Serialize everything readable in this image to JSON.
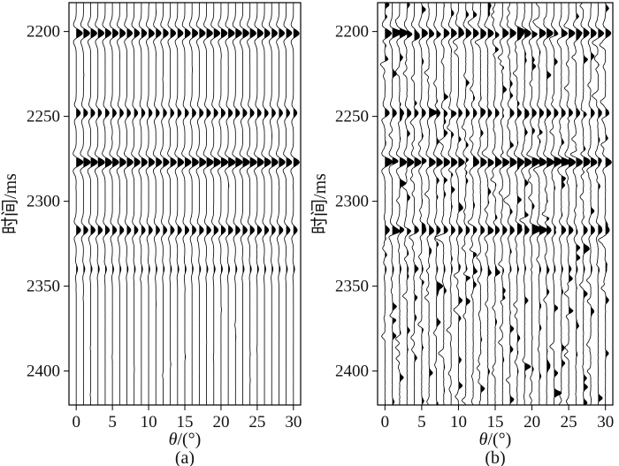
{
  "chart_data": [
    {
      "type": "seismic-wiggle",
      "panel_label": "(a)",
      "xlabel_symbol": "θ",
      "xlabel_unit": "/(°)",
      "ylabel": "时间/ms",
      "xlim": [
        -1,
        31
      ],
      "ylim": [
        2183,
        2420
      ],
      "x_ticks": [
        0,
        5,
        10,
        15,
        20,
        25,
        30
      ],
      "y_ticks": [
        2200,
        2250,
        2300,
        2350,
        2400
      ],
      "traces": [
        0,
        1,
        2,
        3,
        4,
        5,
        6,
        7,
        8,
        9,
        10,
        11,
        12,
        13,
        14,
        15,
        16,
        17,
        18,
        19,
        20,
        21,
        22,
        23,
        24,
        25,
        26,
        27,
        28,
        29,
        30
      ],
      "events": [
        {
          "time": 2201,
          "amplitude": 0.9
        },
        {
          "time": 2248,
          "amplitude": 0.6
        },
        {
          "time": 2277,
          "amplitude": 1.0
        },
        {
          "time": 2317,
          "amplitude": 0.65
        },
        {
          "time": 2340,
          "amplitude": 0.2
        }
      ],
      "noise": 0.05
    },
    {
      "type": "seismic-wiggle",
      "panel_label": "(b)",
      "xlabel_symbol": "θ",
      "xlabel_unit": "/(°)",
      "ylabel": "时间/ms",
      "xlim": [
        -1,
        31
      ],
      "ylim": [
        2183,
        2420
      ],
      "x_ticks": [
        0,
        5,
        10,
        15,
        20,
        25,
        30
      ],
      "y_ticks": [
        2200,
        2250,
        2300,
        2350,
        2400
      ],
      "traces": [
        0,
        1,
        2,
        3,
        4,
        5,
        6,
        7,
        8,
        9,
        10,
        11,
        12,
        13,
        14,
        15,
        16,
        17,
        18,
        19,
        20,
        21,
        22,
        23,
        24,
        25,
        26,
        27,
        28,
        29,
        30
      ],
      "events": [
        {
          "time": 2201,
          "amplitude": 0.9
        },
        {
          "time": 2248,
          "amplitude": 0.6
        },
        {
          "time": 2277,
          "amplitude": 1.0
        },
        {
          "time": 2317,
          "amplitude": 0.65
        },
        {
          "time": 2340,
          "amplitude": 0.2
        }
      ],
      "noise": 0.35
    }
  ]
}
